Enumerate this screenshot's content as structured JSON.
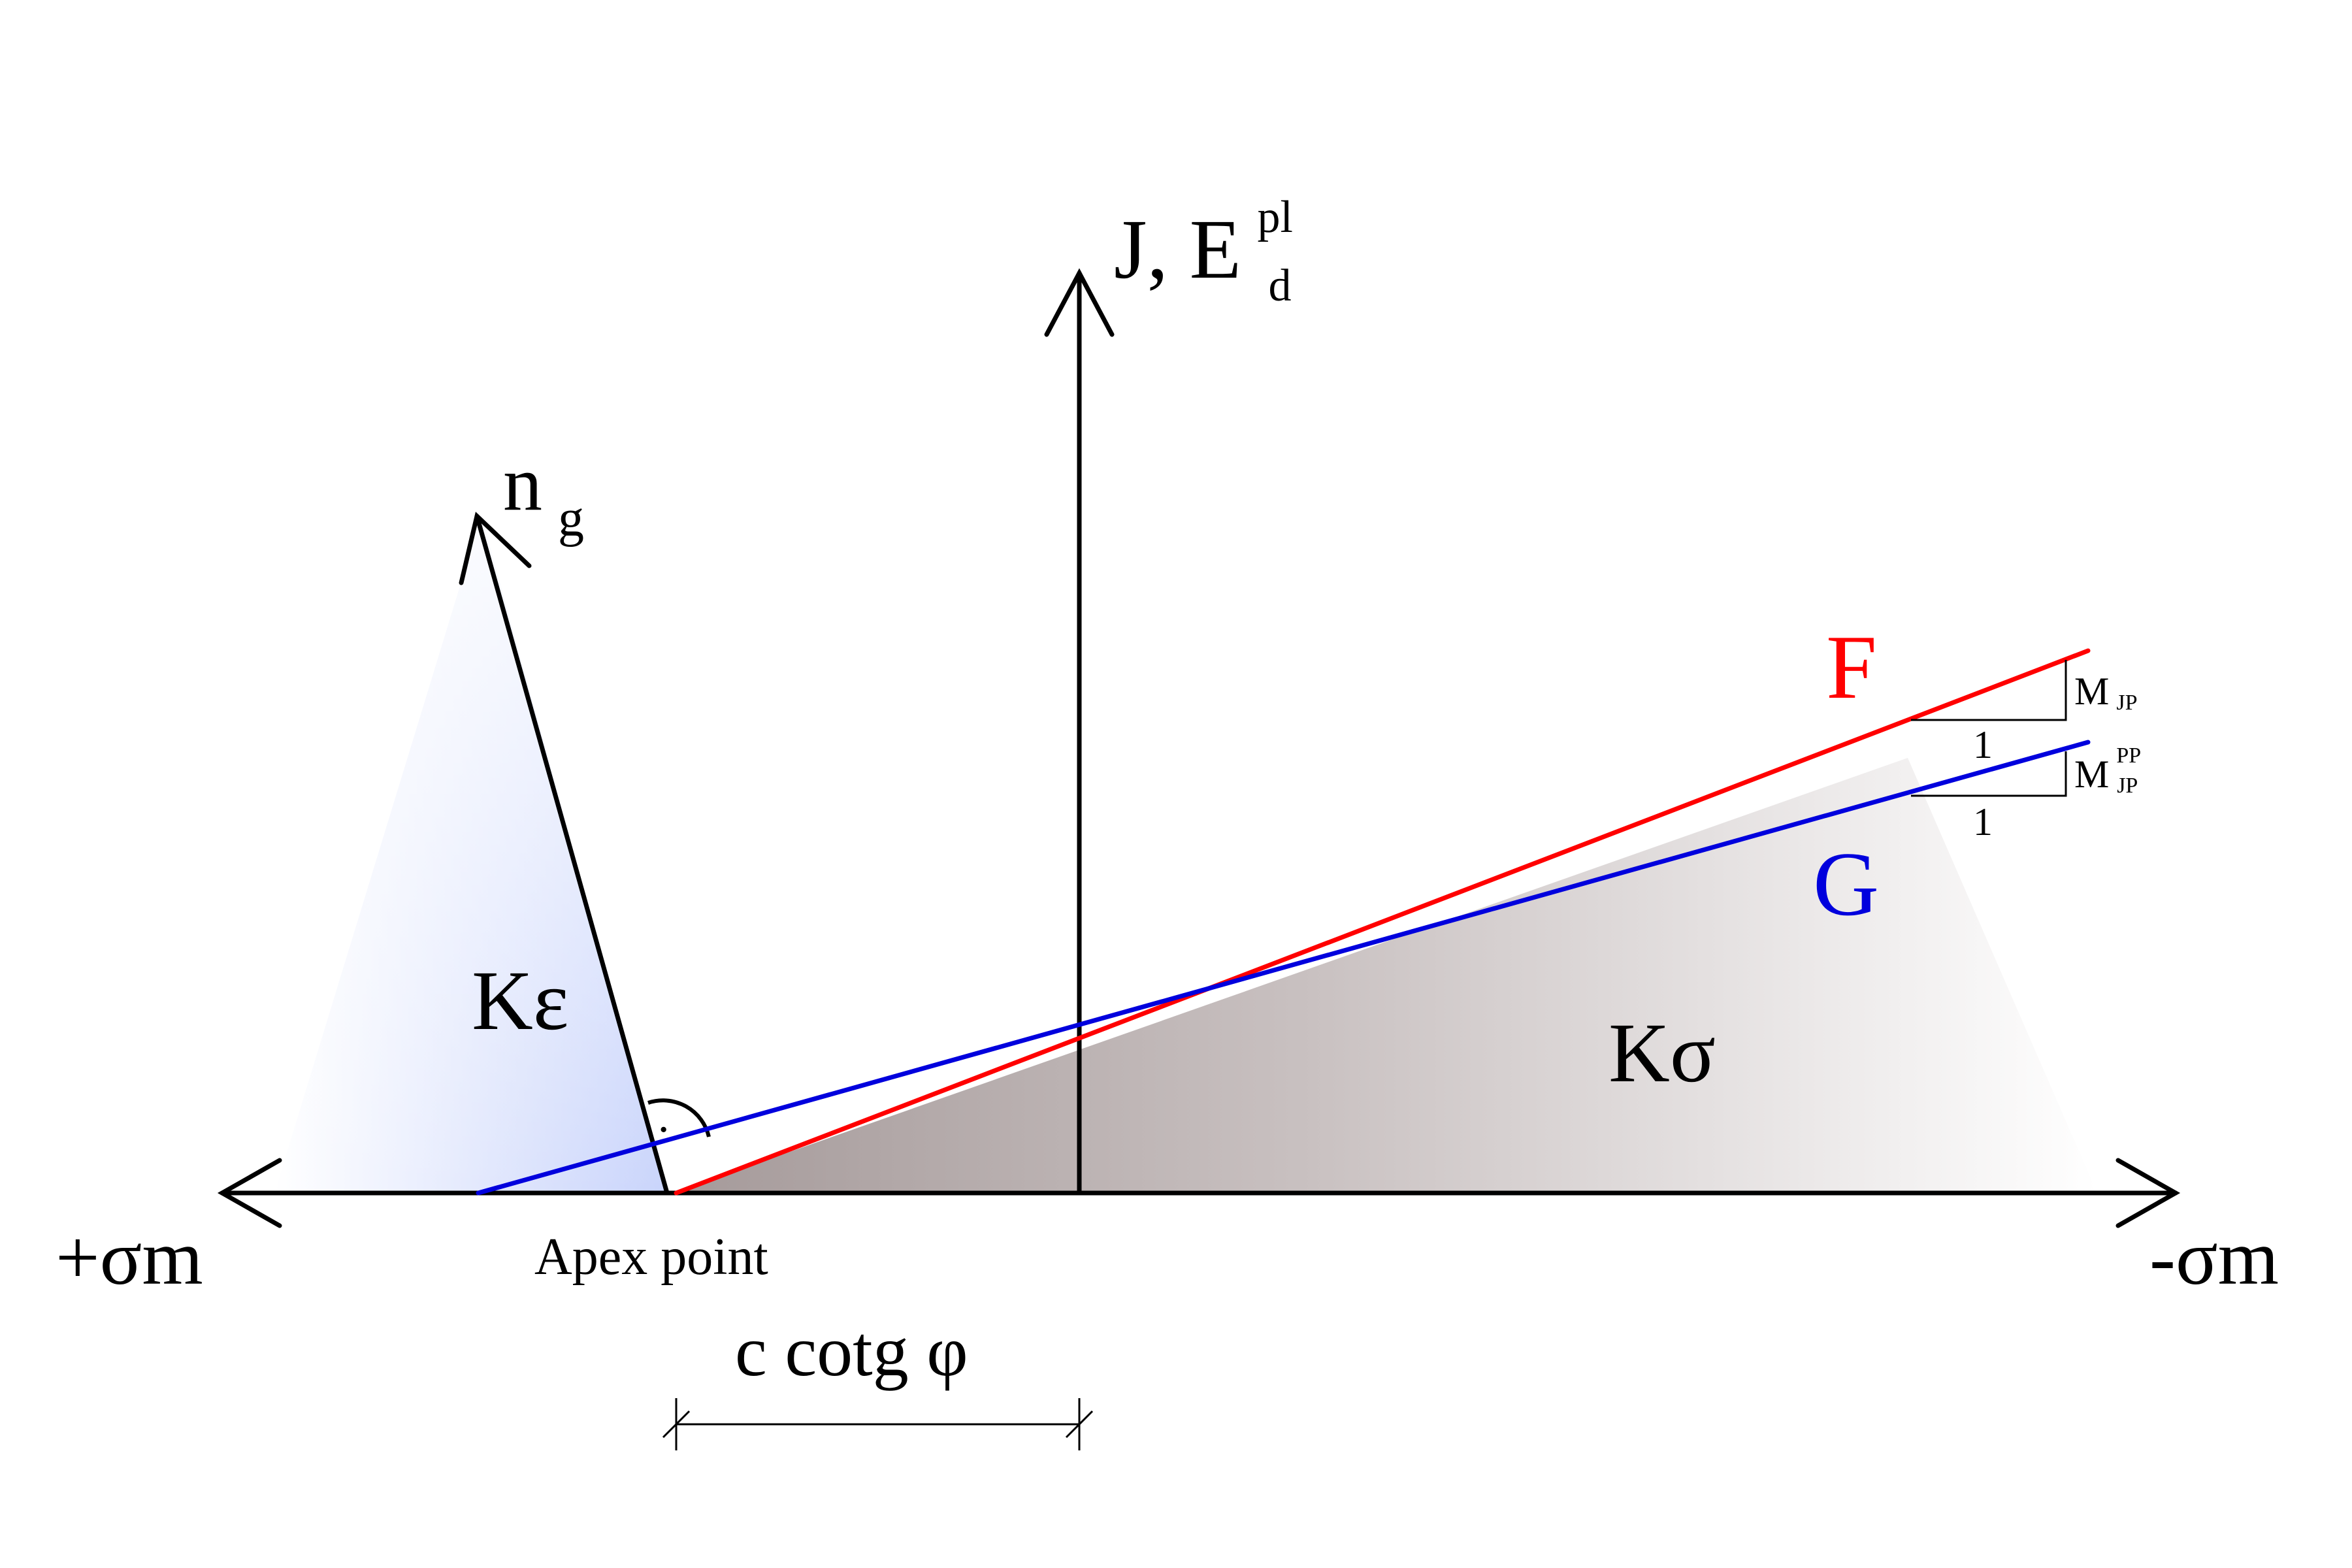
{
  "labels": {
    "y_axis": "J, E",
    "y_axis_sup": "pl",
    "y_axis_sub": "d",
    "n_g_main": "n",
    "n_g_sub": "g",
    "k_epsilon": "Kε",
    "k_sigma": "Kσ",
    "f_surface": "F",
    "g_surface": "G",
    "m_jp_main": "M",
    "m_jp_sub": "JP",
    "m_jp_pp_main": "M",
    "m_jp_pp_sup": "PP",
    "m_jp_pp_sub": "JP",
    "slope_run_f": "1",
    "slope_run_g": "1",
    "plus_sigma": "+σm",
    "minus_sigma": "-σm",
    "apex_point": "Apex point",
    "c_cotg": "c cotg φ",
    "right_angle_dot": "·"
  },
  "colors": {
    "f_line": "#ff0000",
    "g_line": "#0000dd",
    "axes": "#000000",
    "k_epsilon_fill": "#c9d4fb",
    "k_sigma_fill": "#a59a9a"
  }
}
